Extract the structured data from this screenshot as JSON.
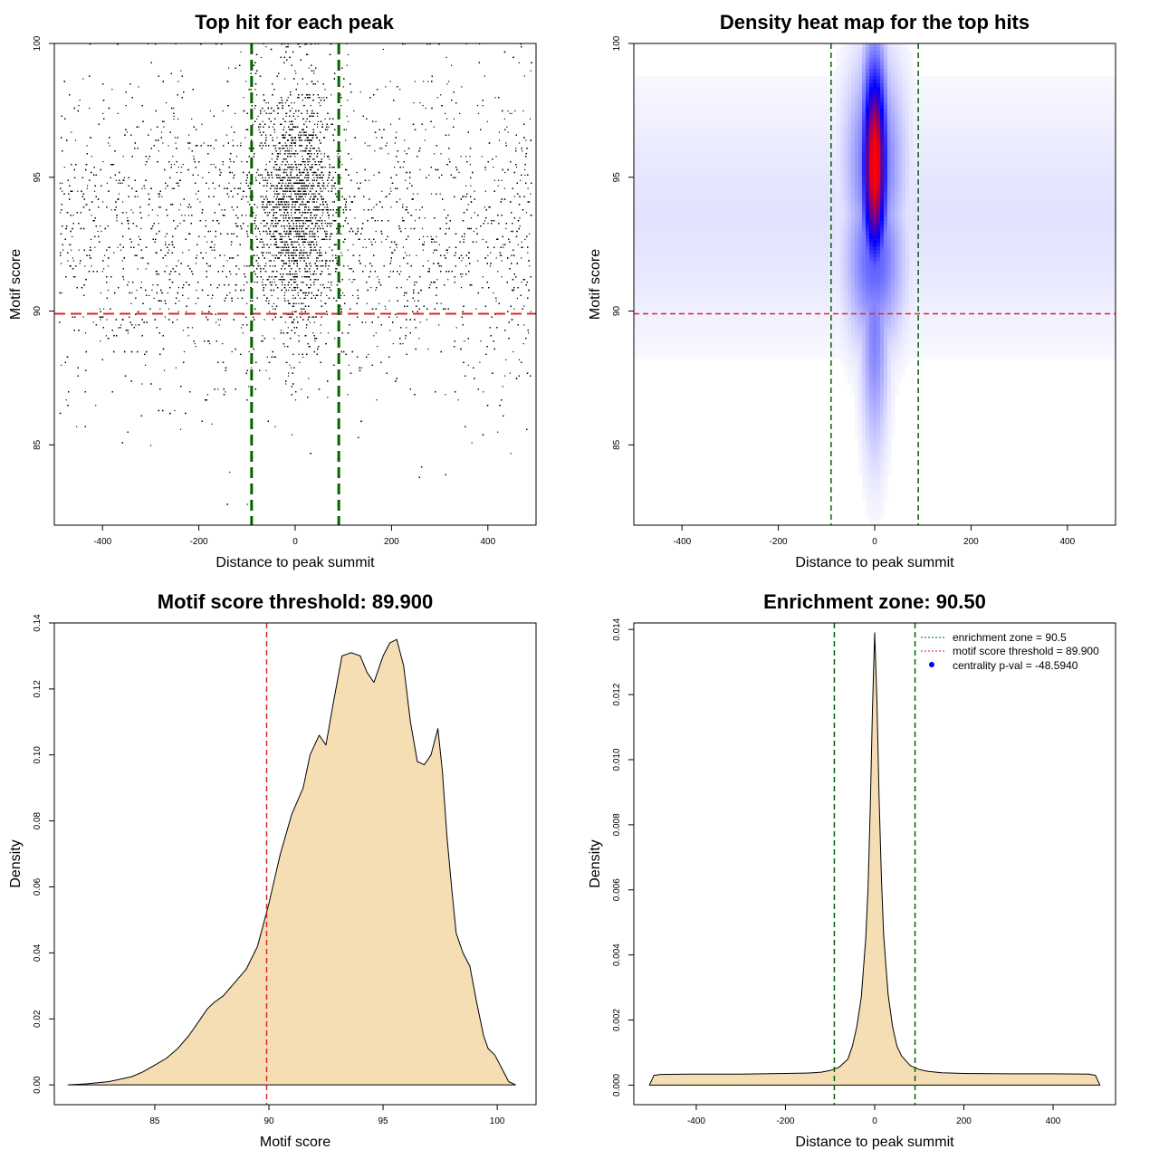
{
  "colors": {
    "threshold_line": "#e0242b",
    "zone_line": "#006400",
    "density_fill": "#f5deb3",
    "heat_low": "#ffffff",
    "heat_mid": "#0000ff",
    "heat_high": "#ff0000",
    "point": "#000000",
    "legend_point": "#0000ff"
  },
  "chart_data": [
    {
      "id": "scatter",
      "type": "scatter",
      "title": "Top hit for each peak",
      "xlabel": "Distance to peak summit",
      "ylabel": "Motif score",
      "xlim": [
        -500,
        500
      ],
      "ylim": [
        82,
        100
      ],
      "xticks": [
        -400,
        -200,
        0,
        200,
        400
      ],
      "yticks": [
        85,
        90,
        95,
        100
      ],
      "hlines": [
        89.9
      ],
      "vlines": [
        -90.5,
        90.5
      ],
      "point_count_approx": 15000,
      "distribution": {
        "background_fraction": 0.57,
        "center_sd_distance": 40,
        "center_score_mean": 94,
        "center_score_sd": 2.3,
        "background_score_mean": 93,
        "background_score_sd": 3,
        "x_range": [
          -490,
          490
        ],
        "score_range": [
          82.5,
          100
        ]
      }
    },
    {
      "id": "heatmap",
      "type": "heatmap",
      "title": "Density heat map for the top hits",
      "xlabel": "Distance to peak summit",
      "ylabel": "Motif score",
      "xlim": [
        -500,
        500
      ],
      "ylim": [
        82,
        100
      ],
      "xticks": [
        -400,
        -200,
        0,
        200,
        400
      ],
      "yticks": [
        85,
        90,
        95,
        100
      ],
      "hlines": [
        89.9
      ],
      "vlines": [
        -90.5,
        90.5
      ],
      "hotspot": {
        "x_center": 0,
        "x_sd": 18,
        "score_peak": 95.5,
        "score_sd": 2.6
      }
    },
    {
      "id": "score-density",
      "type": "area",
      "title": "Motif score threshold: 89.900",
      "xlabel": "Motif score",
      "ylabel": "Density",
      "xlim": [
        80.6,
        101.7
      ],
      "ylim": [
        -0.006,
        0.14
      ],
      "xticks": [
        85,
        90,
        95,
        100
      ],
      "yticks": [
        0.0,
        0.02,
        0.04,
        0.06,
        0.08,
        0.1,
        0.12,
        0.14
      ],
      "ytick_labels": [
        "0.00",
        "0.02",
        "0.04",
        "0.06",
        "0.08",
        "0.10",
        "0.12",
        "0.14"
      ],
      "vlines": [
        89.9
      ],
      "x": [
        81.2,
        82,
        83,
        84,
        84.5,
        85,
        85.5,
        86,
        86.5,
        87,
        87.3,
        87.6,
        88,
        88.5,
        89,
        89.5,
        90,
        90.5,
        91,
        91.5,
        91.8,
        92.2,
        92.5,
        92.8,
        93.2,
        93.6,
        94,
        94.3,
        94.6,
        95,
        95.3,
        95.6,
        95.9,
        96.2,
        96.5,
        96.8,
        97.1,
        97.4,
        97.6,
        97.8,
        98,
        98.2,
        98.5,
        98.8,
        99.1,
        99.4,
        99.6,
        99.9,
        100.2,
        100.5,
        100.8
      ],
      "y": [
        0.0,
        0.0003,
        0.001,
        0.0025,
        0.004,
        0.006,
        0.008,
        0.011,
        0.015,
        0.02,
        0.023,
        0.025,
        0.027,
        0.031,
        0.035,
        0.042,
        0.055,
        0.07,
        0.082,
        0.09,
        0.1,
        0.106,
        0.103,
        0.115,
        0.13,
        0.131,
        0.13,
        0.125,
        0.122,
        0.13,
        0.134,
        0.135,
        0.127,
        0.11,
        0.098,
        0.097,
        0.1,
        0.108,
        0.095,
        0.075,
        0.06,
        0.046,
        0.04,
        0.036,
        0.025,
        0.015,
        0.011,
        0.009,
        0.005,
        0.001,
        0.0
      ]
    },
    {
      "id": "distance-density",
      "type": "area",
      "title": "Enrichment zone: 90.50",
      "xlabel": "Distance to peak summit",
      "ylabel": "Density",
      "xlim": [
        -540,
        540
      ],
      "ylim": [
        -0.0006,
        0.0142
      ],
      "xticks": [
        -400,
        -200,
        0,
        200,
        400
      ],
      "yticks": [
        0.0,
        0.002,
        0.004,
        0.006,
        0.008,
        0.01,
        0.012,
        0.014
      ],
      "ytick_labels": [
        "0.000",
        "0.002",
        "0.004",
        "0.006",
        "0.008",
        "0.010",
        "0.012",
        "0.014"
      ],
      "vlines": [
        -90.5,
        90.5
      ],
      "x": [
        -505,
        -495,
        -480,
        -400,
        -300,
        -200,
        -150,
        -120,
        -100,
        -80,
        -60,
        -50,
        -40,
        -30,
        -20,
        -15,
        -10,
        -5,
        0,
        5,
        10,
        15,
        20,
        30,
        40,
        50,
        60,
        80,
        100,
        120,
        150,
        200,
        300,
        400,
        480,
        495,
        505
      ],
      "y": [
        0.0,
        0.0003,
        0.00033,
        0.00034,
        0.00034,
        0.00036,
        0.00037,
        0.0004,
        0.00045,
        0.00055,
        0.0008,
        0.0012,
        0.0018,
        0.0027,
        0.0045,
        0.006,
        0.0085,
        0.0115,
        0.0139,
        0.0118,
        0.0088,
        0.0064,
        0.0046,
        0.0028,
        0.0018,
        0.0012,
        0.0009,
        0.0006,
        0.00048,
        0.00042,
        0.00038,
        0.00036,
        0.00035,
        0.00035,
        0.00034,
        0.0003,
        0.0
      ],
      "legend": [
        {
          "label": "enrichment zone = 90.5",
          "style": "dotted",
          "color_key": "zone_line"
        },
        {
          "label": "motif score threshold = 89.900",
          "style": "dotted",
          "color_key": "threshold_line"
        },
        {
          "label": "centrality p-val = -48.5940",
          "style": "point",
          "color_key": "legend_point"
        }
      ],
      "legend_position": "top-right"
    }
  ]
}
